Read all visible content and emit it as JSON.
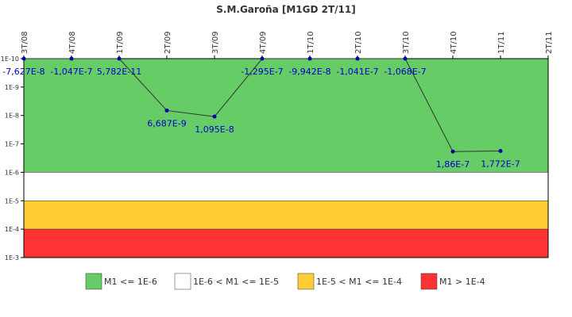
{
  "chart_data": {
    "type": "line",
    "title": "S.M.Garoña [M1GD 2T/11]",
    "categories": [
      "3T/08",
      "4T/08",
      "1T/09",
      "2T/09",
      "3T/09",
      "4T/09",
      "1T/10",
      "2T/10",
      "3T/10",
      "4T/10",
      "1T/11",
      "2T/11"
    ],
    "series": [
      {
        "name": "M1",
        "color": "#0000aa",
        "values": [
          -7.627e-08,
          -1.047e-07,
          5.782e-11,
          6.687e-09,
          1.095e-08,
          -1.295e-07,
          -9.942e-08,
          -1.041e-07,
          -1.068e-07,
          1.86e-07,
          1.772e-07,
          null
        ],
        "value_labels": [
          "-7,627E-8",
          "-1,047E-7",
          "5,782E-11",
          "6,687E-9",
          "1,095E-8",
          "-1,295E-7",
          "-9,942E-8",
          "-1,041E-7",
          "-1,068E-7",
          "1,86E-7",
          "1,772E-7",
          null
        ]
      }
    ],
    "yscale": "log",
    "y_reversed": true,
    "ylim": [
      1e-10,
      0.001
    ],
    "yticks": [
      {
        "value": 1e-10,
        "label": "1E-10"
      },
      {
        "value": 1e-09,
        "label": "1E-9"
      },
      {
        "value": 1e-08,
        "label": "1E-8"
      },
      {
        "value": 1e-07,
        "label": "1E-7"
      },
      {
        "value": 1e-06,
        "label": "1E-6"
      },
      {
        "value": 1e-05,
        "label": "1E-5"
      },
      {
        "value": 0.0001,
        "label": "1E-4"
      },
      {
        "value": 0.001,
        "label": "1E-3"
      }
    ],
    "bands": [
      {
        "name": "M1 <= 1E-6",
        "from": 1e-10,
        "to": 1e-06,
        "color": "#66cc66"
      },
      {
        "name": "1E-6 < M1 <= 1E-5",
        "from": 1e-06,
        "to": 1e-05,
        "color": "#ffffff"
      },
      {
        "name": "1E-5 < M1 <= 1E-4",
        "from": 1e-05,
        "to": 0.0001,
        "color": "#ffcc33"
      },
      {
        "name": "M1 > 1E-4",
        "from": 0.0001,
        "to": 0.001,
        "color": "#ff3333"
      }
    ]
  }
}
